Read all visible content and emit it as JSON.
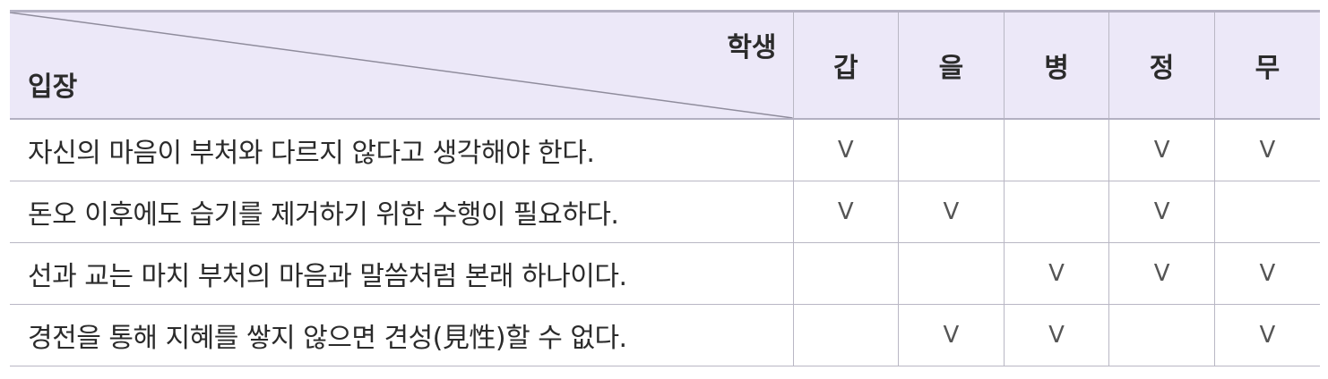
{
  "header": {
    "row_label": "입장",
    "column_label": "학생",
    "students": [
      "갑",
      "을",
      "병",
      "정",
      "무"
    ]
  },
  "check_mark": "V",
  "rows": [
    {
      "stance": "자신의 마음이 부처와 다르지 않다고 생각해야 한다.",
      "marks": [
        "V",
        "",
        "",
        "V",
        "V"
      ]
    },
    {
      "stance": "돈오 이후에도 습기를 제거하기 위한 수행이 필요하다.",
      "marks": [
        "V",
        "V",
        "",
        "V",
        ""
      ]
    },
    {
      "stance": "선과 교는 마치 부처의 마음과 말씀처럼 본래 하나이다.",
      "marks": [
        "",
        "",
        "V",
        "V",
        "V"
      ]
    },
    {
      "stance": "경전을 통해 지혜를 쌓지 않으면 견성(見性)할 수 없다.",
      "marks": [
        "",
        "V",
        "V",
        "",
        "V"
      ]
    }
  ],
  "colors": {
    "header_bg": "#ece8f8",
    "border": "#b9b7c4",
    "text": "#2b2b2b"
  }
}
